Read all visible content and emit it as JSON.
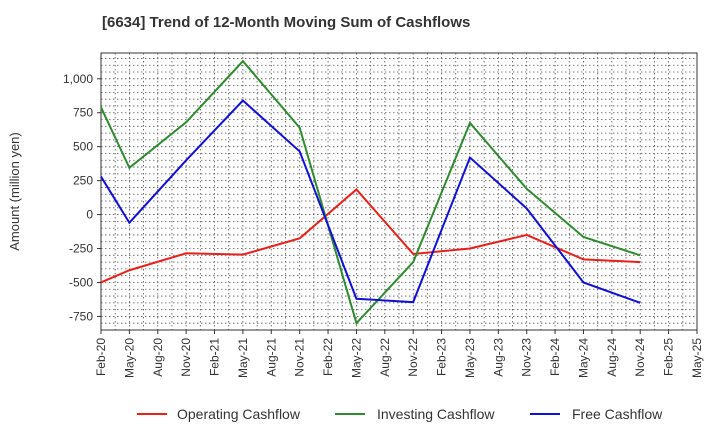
{
  "chart_data": {
    "type": "line",
    "title": "[6634]  Trend of 12-Month Moving Sum of Cashflows",
    "xlabel": "",
    "ylabel": "Amount (million yen)",
    "ylim": [
      -850,
      1190
    ],
    "yticks": [
      -750,
      -500,
      -250,
      0,
      250,
      500,
      750,
      1000
    ],
    "ytick_labels": [
      "-750",
      "-500",
      "-250",
      "0",
      "250",
      "500",
      "750",
      "1,000"
    ],
    "categories": [
      "Feb-20",
      "May-20",
      "Aug-20",
      "Nov-20",
      "Feb-21",
      "May-21",
      "Aug-21",
      "Nov-21",
      "Feb-22",
      "May-22",
      "Aug-22",
      "Nov-22",
      "Feb-23",
      "May-23",
      "Aug-23",
      "Nov-23",
      "Feb-24",
      "May-24",
      "Aug-24",
      "Nov-24",
      "Feb-25",
      "May-25"
    ],
    "grid": true,
    "legend_position": "bottom",
    "series": [
      {
        "name": "Operating Cashflow",
        "color": "#e8201a",
        "points": [
          [
            "Feb-20",
            -500
          ],
          [
            "May-20",
            -410
          ],
          [
            "Nov-20",
            -285
          ],
          [
            "May-21",
            -295
          ],
          [
            "Nov-21",
            -175
          ],
          [
            "May-22",
            185
          ],
          [
            "Nov-22",
            -290
          ],
          [
            "May-23",
            -250
          ],
          [
            "Nov-23",
            -150
          ],
          [
            "May-24",
            -330
          ],
          [
            "Nov-24",
            -350
          ]
        ]
      },
      {
        "name": "Investing Cashflow",
        "color": "#2e8b2e",
        "points": [
          [
            "Feb-20",
            790
          ],
          [
            "May-20",
            345
          ],
          [
            "Nov-20",
            680
          ],
          [
            "May-21",
            1130
          ],
          [
            "Nov-21",
            640
          ],
          [
            "May-22",
            -800
          ],
          [
            "Nov-22",
            -350
          ],
          [
            "May-23",
            675
          ],
          [
            "Nov-23",
            190
          ],
          [
            "May-24",
            -165
          ],
          [
            "Nov-24",
            -300
          ]
        ]
      },
      {
        "name": "Free Cashflow",
        "color": "#1010d6",
        "points": [
          [
            "Feb-20",
            280
          ],
          [
            "May-20",
            -60
          ],
          [
            "Nov-20",
            400
          ],
          [
            "May-21",
            840
          ],
          [
            "Nov-21",
            465
          ],
          [
            "May-22",
            -620
          ],
          [
            "Nov-22",
            -645
          ],
          [
            "May-23",
            420
          ],
          [
            "Nov-23",
            45
          ],
          [
            "May-24",
            -500
          ],
          [
            "Nov-24",
            -650
          ]
        ]
      }
    ]
  }
}
